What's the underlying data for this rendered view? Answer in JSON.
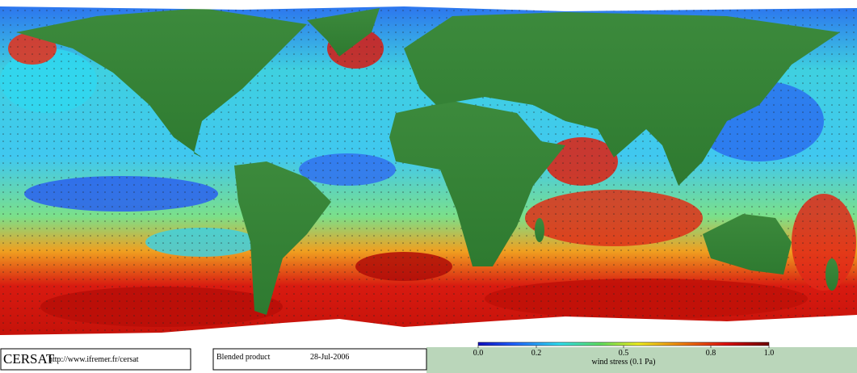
{
  "credit": {
    "name": "CERSAT",
    "url": "http://www.ifremer.fr/cersat"
  },
  "product": {
    "label": "Blended product",
    "date": "28-Jul-2006"
  },
  "colorbar": {
    "range": [
      0,
      1
    ],
    "ticks": [
      {
        "value": 0,
        "label": "0.0"
      },
      0.2,
      0.5,
      0.8,
      {
        "value": 1,
        "label": "1.0"
      }
    ],
    "label": "wind stress (0.1 Pa)"
  }
}
